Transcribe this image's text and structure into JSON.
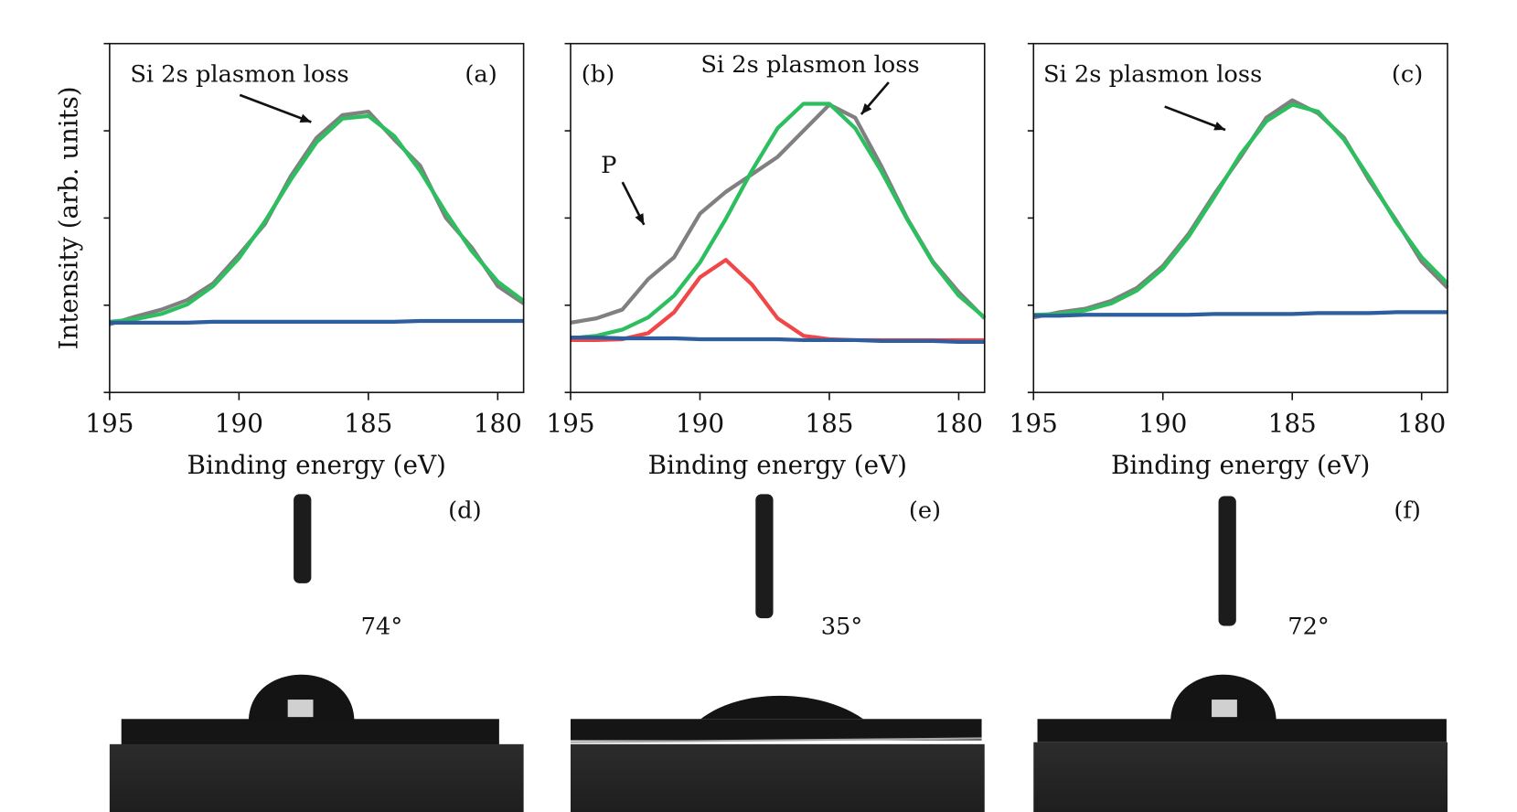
{
  "chart_data": [
    {
      "type": "line",
      "x": [
        195,
        194,
        193,
        192,
        191,
        190,
        189,
        188,
        187,
        186,
        185,
        184,
        183,
        182,
        181,
        180,
        179
      ],
      "xlim": [
        195,
        179
      ],
      "xticks": [
        195,
        190,
        185,
        180
      ],
      "ylim": [
        0,
        4
      ],
      "yticks": [
        0,
        1,
        2,
        3,
        4
      ],
      "xlabel": "Binding energy (eV)",
      "ylabel": "Intensity (arb. units)",
      "annotations": [
        "Si 2s plasmon loss",
        "(a)"
      ],
      "series": [
        {
          "color": "#808080",
          "values": [
            0.78,
            0.87,
            0.95,
            1.06,
            1.25,
            1.58,
            1.93,
            2.48,
            2.92,
            3.18,
            3.22,
            2.9,
            2.6,
            2.0,
            1.66,
            1.22,
            1.02
          ]
        },
        {
          "color": "#2dbe60",
          "values": [
            0.81,
            0.84,
            0.9,
            1.01,
            1.22,
            1.54,
            1.96,
            2.44,
            2.87,
            3.14,
            3.17,
            2.94,
            2.54,
            2.06,
            1.62,
            1.27,
            1.05
          ]
        },
        {
          "color": "#2e5e9e",
          "values": [
            0.8,
            0.8,
            0.8,
            0.8,
            0.81,
            0.81,
            0.81,
            0.81,
            0.81,
            0.81,
            0.81,
            0.81,
            0.82,
            0.82,
            0.82,
            0.82,
            0.82
          ]
        }
      ]
    },
    {
      "type": "line",
      "x": [
        195,
        194,
        193,
        192,
        191,
        190,
        189,
        188,
        187,
        186,
        185,
        184,
        183,
        182,
        181,
        180,
        179
      ],
      "xlim": [
        195,
        179
      ],
      "xticks": [
        195,
        190,
        185,
        180
      ],
      "ylim": [
        0,
        4
      ],
      "yticks": [
        0,
        1,
        2,
        3,
        4
      ],
      "xlabel": "Binding energy (eV)",
      "annotations": [
        "(b)",
        "Si 2s plasmon loss",
        "P"
      ],
      "series": [
        {
          "color": "#808080",
          "values": [
            0.8,
            0.85,
            0.95,
            1.3,
            1.55,
            2.05,
            2.3,
            2.5,
            2.7,
            3.0,
            3.3,
            3.15,
            2.6,
            2.0,
            1.5,
            1.15,
            0.85
          ]
        },
        {
          "color": "#2dbe60",
          "values": [
            0.62,
            0.65,
            0.72,
            0.86,
            1.11,
            1.49,
            1.99,
            2.54,
            3.03,
            3.31,
            3.31,
            3.03,
            2.54,
            1.99,
            1.49,
            1.11,
            0.86
          ]
        },
        {
          "color": "#f04848",
          "values": [
            0.6,
            0.6,
            0.61,
            0.68,
            0.92,
            1.32,
            1.52,
            1.24,
            0.85,
            0.65,
            0.61,
            0.6,
            0.6,
            0.6,
            0.6,
            0.6,
            0.6
          ]
        },
        {
          "color": "#2e5e9e",
          "values": [
            0.63,
            0.63,
            0.62,
            0.62,
            0.62,
            0.61,
            0.61,
            0.61,
            0.61,
            0.6,
            0.6,
            0.6,
            0.59,
            0.59,
            0.59,
            0.58,
            0.58
          ]
        }
      ]
    },
    {
      "type": "line",
      "x": [
        195,
        194,
        193,
        192,
        191,
        190,
        189,
        188,
        187,
        186,
        185,
        184,
        183,
        182,
        181,
        180,
        179
      ],
      "xlim": [
        195,
        179
      ],
      "xticks": [
        195,
        190,
        185,
        180
      ],
      "ylim": [
        0,
        4
      ],
      "yticks": [
        0,
        1,
        2,
        3,
        4
      ],
      "xlabel": "Binding energy (eV)",
      "annotations": [
        "Si 2s plasmon loss",
        "(c)"
      ],
      "series": [
        {
          "color": "#808080",
          "values": [
            0.86,
            0.92,
            0.96,
            1.05,
            1.2,
            1.45,
            1.82,
            2.28,
            2.7,
            3.15,
            3.35,
            3.2,
            2.92,
            2.42,
            1.98,
            1.5,
            1.2
          ]
        },
        {
          "color": "#2dbe60",
          "values": [
            0.89,
            0.9,
            0.94,
            1.02,
            1.17,
            1.42,
            1.79,
            2.25,
            2.73,
            3.11,
            3.3,
            3.22,
            2.9,
            2.45,
            1.96,
            1.55,
            1.25
          ]
        },
        {
          "color": "#2e5e9e",
          "values": [
            0.88,
            0.88,
            0.89,
            0.89,
            0.89,
            0.89,
            0.89,
            0.9,
            0.9,
            0.9,
            0.9,
            0.91,
            0.91,
            0.91,
            0.92,
            0.92,
            0.92
          ]
        }
      ]
    }
  ],
  "photos": [
    {
      "label": "(d)",
      "angle": "74°"
    },
    {
      "label": "(e)",
      "angle": "35°"
    },
    {
      "label": "(f)",
      "angle": "72°"
    }
  ]
}
